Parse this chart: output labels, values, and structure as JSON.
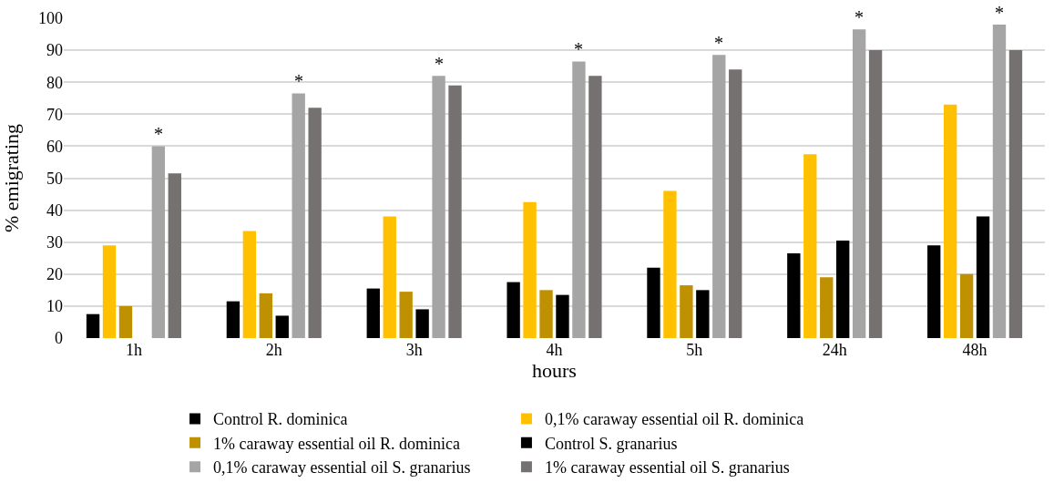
{
  "chart_data": {
    "type": "bar",
    "xlabel": "hours",
    "ylabel": "% emigrating",
    "categories": [
      "1h",
      "2h",
      "3h",
      "4h",
      "5h",
      "24h",
      "48h"
    ],
    "series": [
      {
        "name": "Control R. dominica",
        "color": "#000000",
        "values": [
          7.5,
          11.5,
          15.5,
          17.5,
          22,
          26.5,
          29
        ]
      },
      {
        "name": "0,1% caraway essential oil R. dominica",
        "color": "#ffc000",
        "values": [
          29,
          33.5,
          38,
          42.5,
          46,
          57.5,
          73
        ]
      },
      {
        "name": "1% caraway essential oil R. dominica",
        "color": "#bf9000",
        "values": [
          10,
          14,
          14.5,
          15,
          16.5,
          19,
          20
        ]
      },
      {
        "name": "Control S. granarius",
        "color": "#000000",
        "values": [
          null,
          7,
          9,
          13.5,
          15,
          30.5,
          38
        ]
      },
      {
        "name": "0,1% caraway essential oil S. granarius",
        "color": "#a5a5a5",
        "values": [
          60,
          76.5,
          82,
          86.5,
          88.5,
          96.5,
          98
        ]
      },
      {
        "name": "1% caraway essential oil S. granarius",
        "color": "#767171",
        "values": [
          51.5,
          72,
          79,
          82,
          84,
          90,
          90
        ]
      }
    ],
    "annotations": [
      "*",
      "*",
      "*",
      "*",
      "*",
      "*",
      "*"
    ],
    "ylim": [
      0,
      100
    ],
    "yticks": [
      0,
      10,
      20,
      30,
      40,
      50,
      60,
      70,
      80,
      90,
      100
    ],
    "grid": "y",
    "legend": "bottom"
  }
}
